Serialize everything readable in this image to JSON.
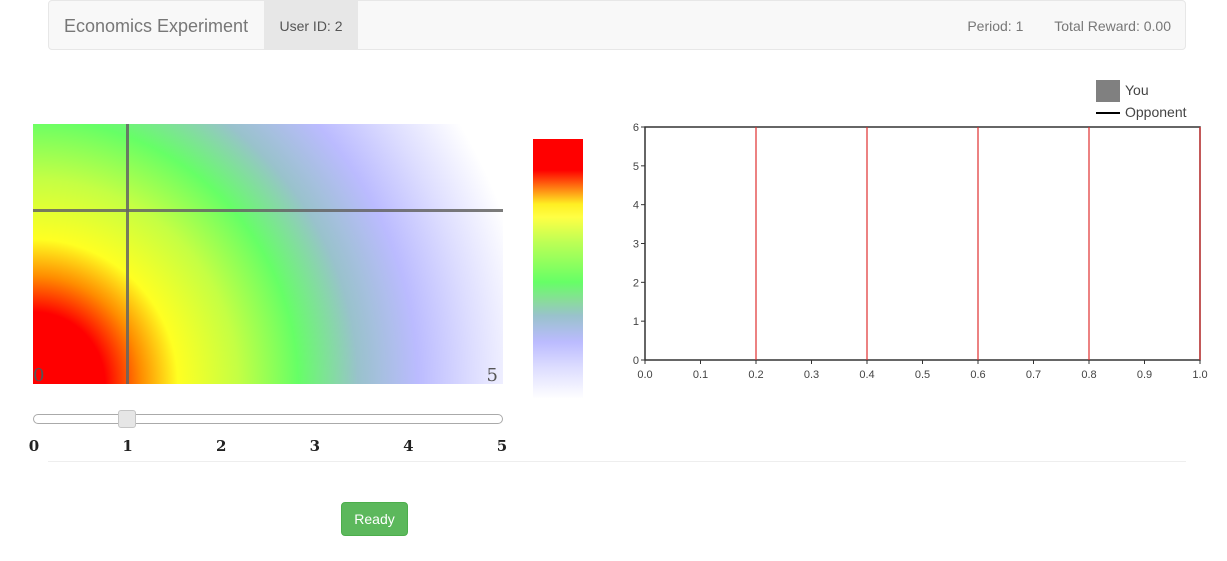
{
  "navbar": {
    "brand": "Economics Experiment",
    "user_id": "User ID: 2",
    "period": "Period: 1",
    "total_reward": "Total Reward: 0.00"
  },
  "heatmap": {
    "left_label": "0",
    "right_label": "5",
    "colors": [
      "#ff0000",
      "#ffff22",
      "#66ff66",
      "#bbbbff",
      "#ffffff"
    ]
  },
  "slider": {
    "value": 1,
    "min": 0,
    "max": 5,
    "ticks": [
      "0",
      "1",
      "2",
      "3",
      "4",
      "5"
    ]
  },
  "ready_button": {
    "label": "Ready",
    "color": "#5cb85c"
  },
  "legend": {
    "you": "You",
    "opponent": "Opponent"
  },
  "chart_data": {
    "type": "bar",
    "xlim": [
      0.0,
      1.0
    ],
    "ylim": [
      0,
      6
    ],
    "xticks": [
      "0.0",
      "0.1",
      "0.2",
      "0.3",
      "0.4",
      "0.5",
      "0.6",
      "0.7",
      "0.8",
      "0.9",
      "1.0"
    ],
    "yticks": [
      "0",
      "1",
      "2",
      "3",
      "4",
      "5",
      "6"
    ],
    "series": [
      {
        "name": "You",
        "x": [],
        "values": [],
        "color": "#808080"
      },
      {
        "name": "Opponent",
        "x": [],
        "values": [],
        "color": "#000000"
      }
    ],
    "markers": [
      0.2,
      0.4,
      0.6,
      0.8,
      1.0
    ],
    "marker_color": "#e03030",
    "legend_position": "top-right"
  }
}
